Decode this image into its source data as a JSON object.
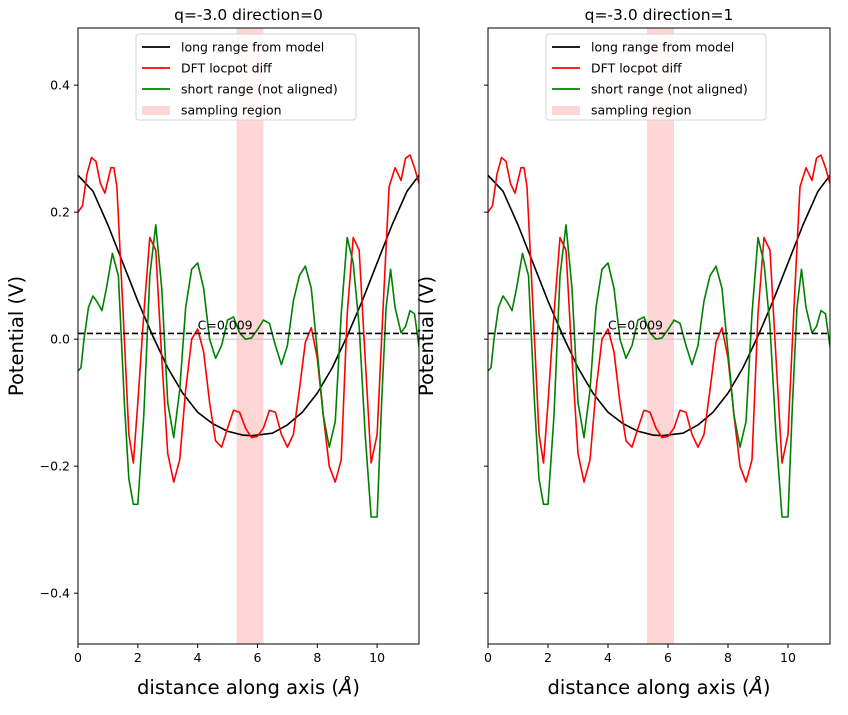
{
  "chart_data": [
    {
      "type": "line",
      "title": "q=-3.0 direction=0",
      "xlabel": "distance along axis ($\\AA$)",
      "xlabel_main": "distance along axis (",
      "xlabel_unit": "Å",
      "xlabel_close": ")",
      "ylabel": "Potential (V)",
      "xlim": [
        0,
        11.4
      ],
      "ylim": [
        -0.48,
        0.49
      ],
      "xticks": [
        0,
        2,
        4,
        6,
        8,
        10
      ],
      "yticks": [
        -0.4,
        -0.2,
        0.0,
        0.2,
        0.4
      ],
      "ytick_labels": [
        "−0.4",
        "−0.2",
        "0.0",
        "0.2",
        "0.4"
      ],
      "show_ytick_labels": true,
      "grid": false,
      "legend_position": "top-center",
      "sampling_region": [
        5.3,
        6.2
      ],
      "constant": {
        "value": 0.009,
        "label": "C=0.009",
        "label_x": 4.0
      },
      "series": [
        {
          "name": "long range from model",
          "color": "#000000",
          "x": [
            0,
            0.5,
            1,
            1.5,
            2,
            2.5,
            3,
            3.5,
            4,
            4.5,
            5,
            5.5,
            5.8,
            6.5,
            7,
            7.5,
            8,
            8.5,
            9,
            9.5,
            10,
            10.5,
            11,
            11.4
          ],
          "y": [
            0.258,
            0.233,
            0.18,
            0.12,
            0.06,
            0.005,
            -0.045,
            -0.085,
            -0.115,
            -0.133,
            -0.145,
            -0.151,
            -0.152,
            -0.148,
            -0.135,
            -0.115,
            -0.085,
            -0.045,
            0.005,
            0.06,
            0.12,
            0.18,
            0.233,
            0.258
          ]
        },
        {
          "name": "DFT locpot diff",
          "color": "#ff0000",
          "x": [
            0,
            0.15,
            0.3,
            0.45,
            0.6,
            0.75,
            0.9,
            1.1,
            1.2,
            1.3,
            1.5,
            1.7,
            1.85,
            2.0,
            2.2,
            2.4,
            2.6,
            2.8,
            3.0,
            3.2,
            3.4,
            3.6,
            3.8,
            4.0,
            4.2,
            4.4,
            4.6,
            4.8,
            5.0,
            5.2,
            5.4,
            5.6,
            5.8,
            6.0,
            6.2,
            6.4,
            6.6,
            6.8,
            7.0,
            7.2,
            7.4,
            7.6,
            7.8,
            8.0,
            8.2,
            8.4,
            8.6,
            8.8,
            9.0,
            9.2,
            9.4,
            9.6,
            9.8,
            10.0,
            10.2,
            10.4,
            10.6,
            10.8,
            10.95,
            11.1,
            11.25,
            11.4
          ],
          "y": [
            0.2,
            0.21,
            0.26,
            0.286,
            0.28,
            0.245,
            0.23,
            0.27,
            0.27,
            0.24,
            0.05,
            -0.15,
            -0.195,
            -0.1,
            0.04,
            0.16,
            0.14,
            -0.03,
            -0.18,
            -0.225,
            -0.19,
            -0.08,
            0.0,
            0.016,
            -0.02,
            -0.1,
            -0.16,
            -0.17,
            -0.14,
            -0.112,
            -0.115,
            -0.14,
            -0.155,
            -0.153,
            -0.14,
            -0.112,
            -0.115,
            -0.15,
            -0.17,
            -0.15,
            -0.08,
            -0.005,
            0.018,
            -0.03,
            -0.12,
            -0.2,
            -0.225,
            -0.19,
            0.04,
            0.16,
            0.14,
            -0.03,
            -0.195,
            -0.15,
            0.05,
            0.24,
            0.27,
            0.25,
            0.285,
            0.29,
            0.27,
            0.245
          ]
        },
        {
          "name": "short range (not aligned)",
          "color": "#008000",
          "x": [
            0,
            0.1,
            0.2,
            0.35,
            0.5,
            0.65,
            0.8,
            0.95,
            1.15,
            1.35,
            1.55,
            1.7,
            1.85,
            2.0,
            2.2,
            2.4,
            2.6,
            2.8,
            3.0,
            3.2,
            3.4,
            3.6,
            3.8,
            4.0,
            4.2,
            4.4,
            4.6,
            4.8,
            5.0,
            5.2,
            5.4,
            5.6,
            5.8,
            6.0,
            6.2,
            6.4,
            6.6,
            6.8,
            7.0,
            7.2,
            7.4,
            7.6,
            7.8,
            8.0,
            8.2,
            8.4,
            8.6,
            8.8,
            9.0,
            9.2,
            9.4,
            9.6,
            9.8,
            10.0,
            10.15,
            10.3,
            10.45,
            10.6,
            10.8,
            10.95,
            11.1,
            11.25,
            11.4
          ],
          "y": [
            -0.05,
            -0.045,
            0.0,
            0.05,
            0.068,
            0.058,
            0.045,
            0.08,
            0.135,
            0.1,
            -0.1,
            -0.22,
            -0.26,
            -0.26,
            -0.12,
            0.1,
            0.18,
            0.08,
            -0.1,
            -0.155,
            -0.08,
            0.05,
            0.11,
            0.12,
            0.08,
            0.0,
            -0.03,
            -0.01,
            0.03,
            0.035,
            0.01,
            0.0,
            0.002,
            0.015,
            0.03,
            0.025,
            -0.01,
            -0.04,
            -0.01,
            0.06,
            0.1,
            0.115,
            0.08,
            -0.02,
            -0.12,
            -0.17,
            -0.13,
            0.04,
            0.16,
            0.12,
            0.02,
            -0.15,
            -0.28,
            -0.28,
            -0.1,
            0.05,
            0.11,
            0.05,
            0.01,
            0.02,
            0.045,
            0.04,
            -0.012
          ]
        }
      ]
    },
    {
      "type": "line",
      "title": "q=-3.0 direction=1",
      "xlabel": "distance along axis ($\\AA$)",
      "xlabel_main": "distance along axis (",
      "xlabel_unit": "Å",
      "xlabel_close": ")",
      "ylabel": "Potential (V)",
      "xlim": [
        0,
        11.4
      ],
      "ylim": [
        -0.48,
        0.49
      ],
      "xticks": [
        0,
        2,
        4,
        6,
        8,
        10
      ],
      "yticks": [
        -0.4,
        -0.2,
        0.0,
        0.2,
        0.4
      ],
      "ytick_labels": [
        "−0.4",
        "−0.2",
        "0.0",
        "0.2",
        "0.4"
      ],
      "show_ytick_labels": false,
      "grid": false,
      "legend_position": "top-center",
      "sampling_region": [
        5.3,
        6.2
      ],
      "constant": {
        "value": 0.009,
        "label": "C=0.009",
        "label_x": 4.0
      },
      "series": [
        {
          "name": "long range from model",
          "color": "#000000",
          "x": [
            0,
            0.5,
            1,
            1.5,
            2,
            2.5,
            3,
            3.5,
            4,
            4.5,
            5,
            5.5,
            5.8,
            6.5,
            7,
            7.5,
            8,
            8.5,
            9,
            9.5,
            10,
            10.5,
            11,
            11.4
          ],
          "y": [
            0.258,
            0.233,
            0.18,
            0.12,
            0.06,
            0.005,
            -0.045,
            -0.085,
            -0.115,
            -0.133,
            -0.145,
            -0.151,
            -0.152,
            -0.148,
            -0.135,
            -0.115,
            -0.085,
            -0.045,
            0.005,
            0.06,
            0.12,
            0.18,
            0.233,
            0.258
          ]
        },
        {
          "name": "DFT locpot diff",
          "color": "#ff0000",
          "x": [
            0,
            0.15,
            0.3,
            0.45,
            0.6,
            0.75,
            0.9,
            1.1,
            1.2,
            1.3,
            1.5,
            1.7,
            1.85,
            2.0,
            2.2,
            2.4,
            2.6,
            2.8,
            3.0,
            3.2,
            3.4,
            3.6,
            3.8,
            4.0,
            4.2,
            4.4,
            4.6,
            4.8,
            5.0,
            5.2,
            5.4,
            5.6,
            5.8,
            6.0,
            6.2,
            6.4,
            6.6,
            6.8,
            7.0,
            7.2,
            7.4,
            7.6,
            7.8,
            8.0,
            8.2,
            8.4,
            8.6,
            8.8,
            9.0,
            9.2,
            9.4,
            9.6,
            9.8,
            10.0,
            10.2,
            10.4,
            10.6,
            10.8,
            10.95,
            11.1,
            11.25,
            11.4
          ],
          "y": [
            0.2,
            0.21,
            0.26,
            0.286,
            0.28,
            0.245,
            0.23,
            0.27,
            0.27,
            0.24,
            0.05,
            -0.15,
            -0.195,
            -0.1,
            0.04,
            0.16,
            0.14,
            -0.03,
            -0.18,
            -0.225,
            -0.19,
            -0.08,
            0.0,
            0.016,
            -0.02,
            -0.1,
            -0.16,
            -0.17,
            -0.14,
            -0.112,
            -0.115,
            -0.14,
            -0.155,
            -0.153,
            -0.14,
            -0.112,
            -0.115,
            -0.15,
            -0.17,
            -0.15,
            -0.08,
            -0.005,
            0.018,
            -0.03,
            -0.12,
            -0.2,
            -0.225,
            -0.19,
            0.04,
            0.16,
            0.14,
            -0.03,
            -0.195,
            -0.15,
            0.05,
            0.24,
            0.27,
            0.25,
            0.285,
            0.29,
            0.27,
            0.245
          ]
        },
        {
          "name": "short range (not aligned)",
          "color": "#008000",
          "x": [
            0,
            0.1,
            0.2,
            0.35,
            0.5,
            0.65,
            0.8,
            0.95,
            1.15,
            1.35,
            1.55,
            1.7,
            1.85,
            2.0,
            2.2,
            2.4,
            2.6,
            2.8,
            3.0,
            3.2,
            3.4,
            3.6,
            3.8,
            4.0,
            4.2,
            4.4,
            4.6,
            4.8,
            5.0,
            5.2,
            5.4,
            5.6,
            5.8,
            6.0,
            6.2,
            6.4,
            6.6,
            6.8,
            7.0,
            7.2,
            7.4,
            7.6,
            7.8,
            8.0,
            8.2,
            8.4,
            8.6,
            8.8,
            9.0,
            9.2,
            9.4,
            9.6,
            9.8,
            10.0,
            10.15,
            10.3,
            10.45,
            10.6,
            10.8,
            10.95,
            11.1,
            11.25,
            11.4
          ],
          "y": [
            -0.05,
            -0.045,
            0.0,
            0.05,
            0.068,
            0.058,
            0.045,
            0.08,
            0.135,
            0.1,
            -0.1,
            -0.22,
            -0.26,
            -0.26,
            -0.12,
            0.1,
            0.18,
            0.08,
            -0.1,
            -0.155,
            -0.08,
            0.05,
            0.11,
            0.12,
            0.08,
            0.0,
            -0.03,
            -0.01,
            0.03,
            0.035,
            0.01,
            0.0,
            0.002,
            0.015,
            0.03,
            0.025,
            -0.01,
            -0.04,
            -0.01,
            0.06,
            0.1,
            0.115,
            0.08,
            -0.02,
            -0.12,
            -0.17,
            -0.13,
            0.04,
            0.16,
            0.12,
            0.02,
            -0.15,
            -0.28,
            -0.28,
            -0.1,
            0.05,
            0.11,
            0.05,
            0.01,
            0.02,
            0.045,
            0.04,
            -0.012
          ]
        }
      ]
    }
  ],
  "legend": {
    "sampling_label": "sampling region",
    "sampling_color": "#ffd6d6"
  }
}
